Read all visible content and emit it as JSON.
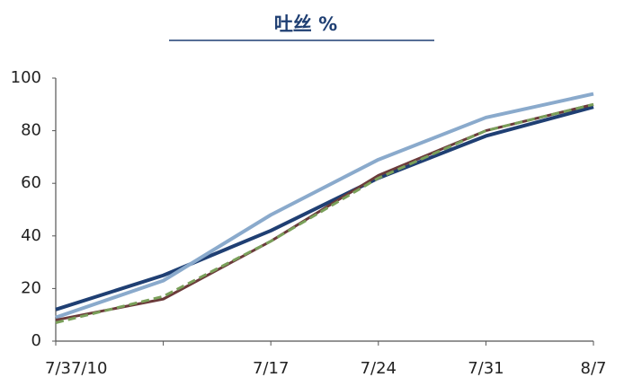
{
  "chart_data": {
    "type": "line",
    "title": "吐丝 %",
    "categories": [
      "7/37/10",
      null,
      "7/17",
      "7/24",
      "7/31",
      "8/7"
    ],
    "series": [
      {
        "color": "#1f3f73",
        "values": [
          12,
          25,
          42,
          62,
          78,
          89
        ]
      },
      {
        "color": "#8aaacc",
        "values": [
          9,
          23,
          48,
          69,
          85,
          94
        ]
      },
      {
        "color": "#6b3a3a",
        "values": [
          8,
          16,
          38,
          63,
          80,
          90
        ]
      },
      {
        "color": "#7aa05a",
        "values": [
          7,
          17,
          38,
          62,
          80,
          90
        ],
        "dashed": true
      }
    ],
    "ylim": [
      0,
      100
    ],
    "yticks": [
      0,
      20,
      40,
      60,
      80,
      100
    ],
    "grid": false
  }
}
